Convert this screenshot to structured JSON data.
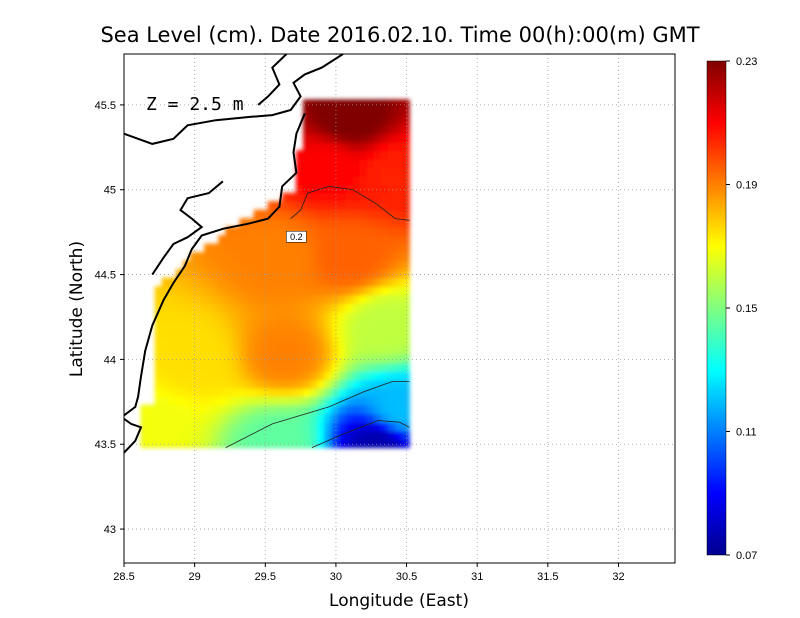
{
  "chart_data": {
    "type": "heatmap",
    "title": "Sea Level (cm). Date 2016.02.10. Time 00(h):00(m) GMT",
    "xlabel": "Longitude (East)",
    "ylabel": "Latitude (North)",
    "annotation": "Z = 2.5 m",
    "xlim": [
      28.5,
      32.4
    ],
    "ylim": [
      42.8,
      45.8
    ],
    "x_ticks": [
      {
        "value": 28.5,
        "label": "28.5"
      },
      {
        "value": 29,
        "label": "29"
      },
      {
        "value": 29.5,
        "label": "29.5"
      },
      {
        "value": 30,
        "label": "30"
      },
      {
        "value": 30.5,
        "label": "30.5"
      },
      {
        "value": 31,
        "label": "31"
      },
      {
        "value": 31.5,
        "label": "31.5"
      },
      {
        "value": 32,
        "label": "32"
      }
    ],
    "y_ticks": [
      {
        "value": 43,
        "label": "43"
      },
      {
        "value": 43.5,
        "label": "43.5"
      },
      {
        "value": 44,
        "label": "44"
      },
      {
        "value": 44.5,
        "label": "44.5"
      },
      {
        "value": 45,
        "label": "45"
      },
      {
        "value": 45.5,
        "label": "45.5"
      }
    ],
    "grid": true,
    "colorbar": {
      "min": 0.07,
      "max": 0.23,
      "ticks": [
        {
          "value": 0.23,
          "label": "0.23"
        },
        {
          "value": 0.19,
          "label": "0.19"
        },
        {
          "value": 0.15,
          "label": "0.15"
        },
        {
          "value": 0.11,
          "label": "0.11"
        },
        {
          "value": 0.07,
          "label": "0.07"
        }
      ],
      "colors": [
        "#00008f",
        "#0000ff",
        "#0080ff",
        "#00ffff",
        "#80ff80",
        "#ffff00",
        "#ff8000",
        "#ff0000",
        "#800000"
      ]
    },
    "data_domain": {
      "lon": [
        28.62,
        30.52
      ],
      "lat": [
        43.48,
        45.5
      ]
    },
    "centers": [
      {
        "lon": 30.1,
        "lat": 45.42,
        "value": 0.232
      },
      {
        "lon": 29.95,
        "lat": 45.15,
        "value": 0.21
      },
      {
        "lon": 30.4,
        "lat": 45.1,
        "value": 0.205
      },
      {
        "lon": 29.6,
        "lat": 44.6,
        "value": 0.19
      },
      {
        "lon": 30.1,
        "lat": 44.6,
        "value": 0.195
      },
      {
        "lon": 29.65,
        "lat": 44.03,
        "value": 0.19
      },
      {
        "lon": 29.0,
        "lat": 44.0,
        "value": 0.175
      },
      {
        "lon": 28.7,
        "lat": 43.6,
        "value": 0.168
      },
      {
        "lon": 30.35,
        "lat": 44.2,
        "value": 0.16
      },
      {
        "lon": 30.45,
        "lat": 43.7,
        "value": 0.12
      },
      {
        "lon": 30.3,
        "lat": 43.5,
        "value": 0.075
      },
      {
        "lon": 29.6,
        "lat": 43.5,
        "value": 0.145
      }
    ],
    "contours": [
      {
        "level": 0.2,
        "label": "0.2"
      }
    ]
  }
}
